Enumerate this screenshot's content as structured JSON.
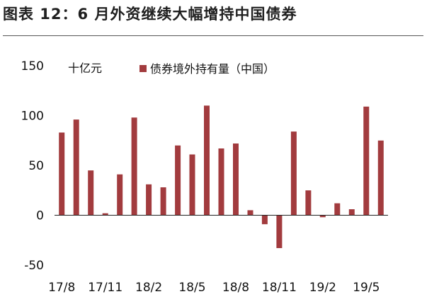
{
  "header": {
    "title": "图表 12：6 月外资继续大幅增持中国债券"
  },
  "colors": {
    "bar": "#A23B3E",
    "axis": "#222222",
    "title_rule": "#555555"
  },
  "chart_data": {
    "type": "bar",
    "unit_label": "十亿元",
    "x_tick_labels": [
      "17/8",
      "17/11",
      "18/2",
      "18/5",
      "18/8",
      "18/11",
      "19/2",
      "19/5"
    ],
    "y_tick_labels": [
      "150",
      "100",
      "50",
      "0",
      "-50"
    ],
    "ylim": [
      -50,
      150
    ],
    "grid": false,
    "legend_position": "top",
    "categories": [
      "17/8",
      "17/9",
      "17/10",
      "17/11",
      "17/12",
      "18/1",
      "18/2",
      "18/3",
      "18/4",
      "18/5",
      "18/6",
      "18/7",
      "18/8",
      "18/9",
      "18/10",
      "18/11",
      "18/12",
      "19/1",
      "19/2",
      "19/3",
      "19/4",
      "19/5",
      "19/6"
    ],
    "series": [
      {
        "name": "债券境外持有量（中国）",
        "values": [
          83,
          96,
          45,
          2,
          41,
          98,
          31,
          28,
          70,
          61,
          110,
          67,
          72,
          5,
          -9,
          -33,
          84,
          25,
          -2,
          12,
          6,
          109,
          75
        ]
      }
    ]
  }
}
